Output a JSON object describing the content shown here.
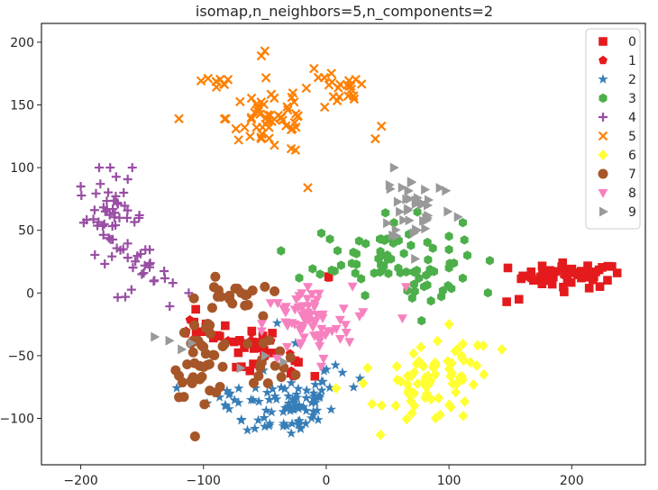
{
  "chart_data": {
    "type": "scatter",
    "title": "isomap,n_neighbors=5,n_components=2",
    "xlabel": "",
    "ylabel": "",
    "xlim": [
      -232,
      260
    ],
    "ylim": [
      -137,
      215
    ],
    "xticks": [
      -200,
      -100,
      0,
      100,
      200
    ],
    "yticks": [
      -100,
      -50,
      0,
      50,
      100,
      150,
      200
    ],
    "grid": false,
    "legend_position": "top-right",
    "series": [
      {
        "name": "0",
        "marker": "square",
        "color": "#e41a1c",
        "clusters": [
          {
            "cx": 200,
            "cy": 14,
            "sx": 20,
            "sy": 5,
            "n": 50
          },
          {
            "cx": -62,
            "cy": -47,
            "sx": 12,
            "sy": 10,
            "n": 18
          },
          {
            "cx": -100,
            "cy": -28,
            "sx": 10,
            "sy": 6,
            "n": 8
          },
          {
            "cx": -22,
            "cy": -63,
            "sx": 6,
            "sy": 6,
            "n": 4
          }
        ],
        "points": [
          [
            237,
            16
          ],
          [
            148,
            20
          ],
          [
            157,
            -5
          ],
          [
            147,
            -7
          ],
          [
            2,
            13
          ]
        ]
      },
      {
        "name": "1",
        "marker": "pentagon",
        "color": "#e41a1c",
        "clusters": [
          {
            "cx": -110,
            "cy": -25,
            "sx": 10,
            "sy": 6,
            "n": 6
          },
          {
            "cx": -60,
            "cy": -45,
            "sx": 10,
            "sy": 8,
            "n": 8
          },
          {
            "cx": -25,
            "cy": -60,
            "sx": 6,
            "sy": 6,
            "n": 4
          }
        ],
        "points": [
          [
            2,
            12
          ],
          [
            -80,
            -38
          ]
        ]
      },
      {
        "name": "2",
        "marker": "star",
        "color": "#377eb8",
        "clusters": [
          {
            "cx": -30,
            "cy": -90,
            "sx": 18,
            "sy": 13,
            "n": 70
          },
          {
            "cx": -80,
            "cy": -85,
            "sx": 12,
            "sy": 8,
            "n": 12
          },
          {
            "cx": 5,
            "cy": -65,
            "sx": 10,
            "sy": 8,
            "n": 10
          }
        ],
        "points": [
          [
            -90,
            -80
          ],
          [
            -97,
            -88
          ],
          [
            -40,
            -24
          ],
          [
            -25,
            -40
          ]
        ]
      },
      {
        "name": "3",
        "marker": "hexagon",
        "color": "#4daf4a",
        "clusters": [
          {
            "cx": 50,
            "cy": 30,
            "sx": 30,
            "sy": 15,
            "n": 60
          },
          {
            "cx": 90,
            "cy": 5,
            "sx": 12,
            "sy": 8,
            "n": 15
          }
        ],
        "points": [
          [
            3,
            43
          ],
          [
            -22,
            12
          ],
          [
            -5,
            15
          ],
          [
            70,
            -4
          ],
          [
            115,
            30
          ],
          [
            100,
            20
          ]
        ]
      },
      {
        "name": "4",
        "marker": "plus",
        "color": "#984ea3",
        "clusters": [
          {
            "cx": -175,
            "cy": 60,
            "sx": 14,
            "sy": 14,
            "n": 45
          },
          {
            "cx": -150,
            "cy": 15,
            "sx": 10,
            "sy": 10,
            "n": 20
          }
        ],
        "points": [
          [
            -200,
            85
          ],
          [
            -185,
            100
          ],
          [
            -176,
            100
          ],
          [
            -158,
            100
          ],
          [
            -165,
            80
          ],
          [
            -180,
            65
          ],
          [
            -140,
            10
          ],
          [
            -125,
            8
          ],
          [
            -112,
            0
          ]
        ]
      },
      {
        "name": "5",
        "marker": "x",
        "color": "#ff7f00",
        "clusters": [
          {
            "cx": -45,
            "cy": 140,
            "sx": 18,
            "sy": 15,
            "n": 55
          },
          {
            "cx": 10,
            "cy": 160,
            "sx": 12,
            "sy": 8,
            "n": 20
          },
          {
            "cx": -90,
            "cy": 168,
            "sx": 8,
            "sy": 5,
            "n": 8
          }
        ],
        "points": [
          [
            -50,
            193
          ],
          [
            -120,
            139
          ],
          [
            -15,
            84
          ],
          [
            -25,
            114
          ],
          [
            45,
            133
          ],
          [
            40,
            123
          ],
          [
            -10,
            179
          ],
          [
            20,
            165
          ]
        ]
      },
      {
        "name": "6",
        "marker": "diamond",
        "color": "#ffff33",
        "clusters": [
          {
            "cx": 85,
            "cy": -75,
            "sx": 18,
            "sy": 15,
            "n": 60
          },
          {
            "cx": 110,
            "cy": -55,
            "sx": 10,
            "sy": 10,
            "n": 15
          }
        ],
        "points": [
          [
            143,
            -45
          ],
          [
            128,
            -42
          ],
          [
            8,
            -76
          ],
          [
            30,
            -72
          ],
          [
            100,
            -25
          ]
        ]
      },
      {
        "name": "7",
        "marker": "circle",
        "color": "#a65628",
        "clusters": [
          {
            "cx": -100,
            "cy": -50,
            "sx": 12,
            "sy": 16,
            "n": 40
          },
          {
            "cx": -80,
            "cy": -5,
            "sx": 12,
            "sy": 8,
            "n": 18
          },
          {
            "cx": -45,
            "cy": -55,
            "sx": 12,
            "sy": 10,
            "n": 15
          }
        ],
        "points": [
          [
            -110,
            -70
          ],
          [
            -120,
            -66
          ],
          [
            -60,
            2
          ],
          [
            -50,
            5
          ]
        ]
      },
      {
        "name": "8",
        "marker": "triangle-down",
        "color": "#f781bf",
        "clusters": [
          {
            "cx": -15,
            "cy": -25,
            "sx": 18,
            "sy": 15,
            "n": 70
          }
        ],
        "points": [
          [
            62,
            -20
          ],
          [
            65,
            5
          ],
          [
            30,
            -15
          ],
          [
            -40,
            -52
          ],
          [
            -20,
            0
          ],
          [
            -15,
            5
          ]
        ]
      },
      {
        "name": "9",
        "marker": "triangle-right",
        "color": "#999999",
        "clusters": [
          {
            "cx": 75,
            "cy": 70,
            "sx": 15,
            "sy": 15,
            "n": 40
          }
        ],
        "points": [
          [
            55,
            100
          ],
          [
            52,
            83
          ],
          [
            -140,
            -35
          ],
          [
            -128,
            -38
          ],
          [
            -118,
            -45
          ],
          [
            -110,
            -40
          ],
          [
            -50,
            -50
          ],
          [
            -35,
            -55
          ],
          [
            -70,
            -60
          ]
        ]
      }
    ]
  }
}
